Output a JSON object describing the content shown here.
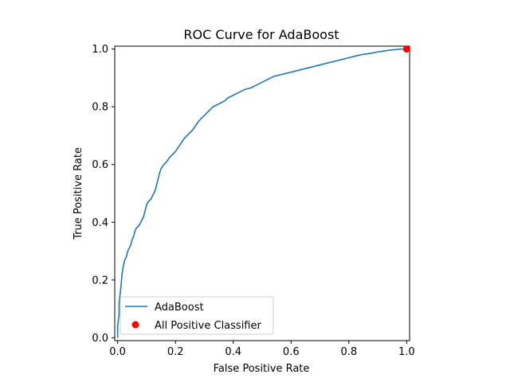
{
  "chart_data": {
    "type": "line",
    "title": "ROC Curve for AdaBoost",
    "xlabel": "False Positive Rate",
    "ylabel": "True Positive Rate",
    "xlim": [
      -0.01,
      1.01
    ],
    "ylim": [
      -0.01,
      1.01
    ],
    "xticks": [
      0.0,
      0.2,
      0.4,
      0.6,
      0.8,
      1.0
    ],
    "xtick_labels": [
      "0.0",
      "0.2",
      "0.4",
      "0.6",
      "0.8",
      "1.0"
    ],
    "yticks": [
      0.0,
      0.2,
      0.4,
      0.6,
      0.8,
      1.0
    ],
    "ytick_labels": [
      "0.0",
      "0.2",
      "0.4",
      "0.6",
      "0.8",
      "1.0"
    ],
    "grid": false,
    "legend_position": "lower-left",
    "series": [
      {
        "name": "AdaBoost",
        "kind": "line",
        "color": "#1f77b4",
        "x": [
          0.0,
          0.0,
          0.005,
          0.005,
          0.012,
          0.015,
          0.02,
          0.025,
          0.03,
          0.035,
          0.04,
          0.045,
          0.05,
          0.055,
          0.06,
          0.065,
          0.07,
          0.075,
          0.08,
          0.085,
          0.09,
          0.095,
          0.1,
          0.105,
          0.11,
          0.115,
          0.12,
          0.125,
          0.13,
          0.135,
          0.14,
          0.145,
          0.15,
          0.16,
          0.17,
          0.18,
          0.19,
          0.2,
          0.21,
          0.22,
          0.23,
          0.24,
          0.25,
          0.26,
          0.27,
          0.28,
          0.29,
          0.3,
          0.31,
          0.32,
          0.33,
          0.34,
          0.35,
          0.36,
          0.37,
          0.38,
          0.39,
          0.4,
          0.42,
          0.44,
          0.46,
          0.48,
          0.5,
          0.52,
          0.54,
          0.56,
          0.58,
          0.6,
          0.62,
          0.64,
          0.66,
          0.68,
          0.7,
          0.72,
          0.74,
          0.76,
          0.78,
          0.8,
          0.82,
          0.84,
          0.86,
          0.88,
          0.9,
          0.92,
          0.94,
          0.96,
          0.98,
          1.0
        ],
        "y": [
          0.0,
          0.04,
          0.08,
          0.12,
          0.18,
          0.22,
          0.25,
          0.27,
          0.28,
          0.3,
          0.31,
          0.32,
          0.34,
          0.35,
          0.37,
          0.38,
          0.385,
          0.39,
          0.4,
          0.41,
          0.42,
          0.44,
          0.46,
          0.47,
          0.475,
          0.48,
          0.49,
          0.5,
          0.51,
          0.53,
          0.55,
          0.57,
          0.585,
          0.6,
          0.61,
          0.625,
          0.635,
          0.645,
          0.66,
          0.675,
          0.69,
          0.7,
          0.71,
          0.72,
          0.735,
          0.75,
          0.76,
          0.77,
          0.78,
          0.79,
          0.8,
          0.805,
          0.81,
          0.815,
          0.82,
          0.83,
          0.835,
          0.84,
          0.85,
          0.86,
          0.865,
          0.875,
          0.885,
          0.895,
          0.905,
          0.91,
          0.915,
          0.92,
          0.925,
          0.93,
          0.935,
          0.94,
          0.945,
          0.95,
          0.955,
          0.96,
          0.965,
          0.97,
          0.975,
          0.98,
          0.983,
          0.986,
          0.99,
          0.993,
          0.996,
          0.998,
          1.0,
          1.0
        ]
      },
      {
        "name": "All Positive Classifier",
        "kind": "scatter",
        "color": "#ff0000",
        "x": [
          1.0
        ],
        "y": [
          1.0
        ]
      }
    ]
  }
}
